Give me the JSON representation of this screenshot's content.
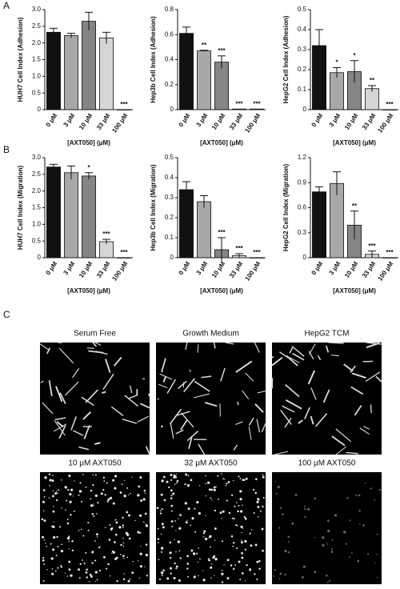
{
  "panel_labels": [
    "A",
    "B",
    "C"
  ],
  "image_captions": [
    "Serum Free",
    "Growth Medium",
    "HepG2 TCM",
    "10 μM AXT050",
    "32 μM AXT050",
    "100 μM AXT050"
  ],
  "chart_data": [
    {
      "type": "bar",
      "y_label": "HUH7 Cell Index (Adhesion)",
      "x_label": "[AXT050] (μM)",
      "categories": [
        "0 μM",
        "3 μM",
        "10 μM",
        "33 μM",
        "100 μM"
      ],
      "values": [
        2.32,
        2.22,
        2.65,
        2.15,
        0
      ],
      "errors": [
        0.12,
        0.07,
        0.27,
        0.17,
        0
      ],
      "annotations": [
        null,
        null,
        null,
        null,
        "***"
      ],
      "colors": [
        "#111111",
        "#a8a8a8",
        "#858585",
        "#d6d6d6",
        "#ffffff"
      ],
      "ylim": [
        0,
        3
      ],
      "yticks": [
        0,
        0.5,
        {
          "value": 1,
          "label": "1.0"
        },
        1.5,
        {
          "value": 2,
          "label": "2.0"
        },
        2.5,
        {
          "value": 3,
          "label": "3.0"
        }
      ]
    },
    {
      "type": "bar",
      "y_label": "Hep3b Cell Index (Adhesion)",
      "x_label": "[AXT050] (μM)",
      "categories": [
        "0 μM",
        "3 μM",
        "10 μM",
        "33 μM",
        "100 μM"
      ],
      "values": [
        0.61,
        0.47,
        0.38,
        0.005,
        0.005
      ],
      "errors": [
        0.05,
        0.005,
        0.05,
        0,
        0
      ],
      "annotations": [
        null,
        "**",
        "***",
        "***",
        "***"
      ],
      "colors": [
        "#111111",
        "#a8a8a8",
        "#858585",
        "#d6d6d6",
        "#ffffff"
      ],
      "ylim": [
        0,
        0.8
      ],
      "yticks": [
        0,
        0.2,
        0.4,
        0.6,
        0.8
      ]
    },
    {
      "type": "bar",
      "y_label": "HepG2 Cell Index (Adhesion)",
      "x_label": "[AXT050] (μM)",
      "categories": [
        "0 μM",
        "3 μM",
        "10 μM",
        "33 μM",
        "100 μM"
      ],
      "values": [
        0.32,
        0.185,
        0.19,
        0.105,
        0
      ],
      "errors": [
        0.08,
        0.025,
        0.055,
        0.015,
        0
      ],
      "annotations": [
        null,
        "*",
        "*",
        "**",
        "***"
      ],
      "colors": [
        "#111111",
        "#a8a8a8",
        "#858585",
        "#d6d6d6",
        "#ffffff"
      ],
      "ylim": [
        0,
        0.5
      ],
      "yticks": [
        0,
        0.1,
        0.2,
        0.3,
        0.4,
        0.5
      ]
    },
    {
      "type": "bar",
      "y_label": "HUH7 Cell Index (Migration)",
      "x_label": "[AXT050] (μM)",
      "categories": [
        "0 μM",
        "3 μM",
        "10 μM",
        "33 μM",
        "100 μM"
      ],
      "values": [
        2.72,
        2.55,
        2.45,
        0.48,
        0
      ],
      "errors": [
        0.08,
        0.2,
        0.1,
        0.07,
        0
      ],
      "annotations": [
        null,
        null,
        "*",
        "***",
        "***"
      ],
      "colors": [
        "#111111",
        "#a8a8a8",
        "#858585",
        "#d6d6d6",
        "#ffffff"
      ],
      "ylim": [
        0,
        3
      ],
      "yticks": [
        0,
        0.5,
        {
          "value": 1,
          "label": "1.0"
        },
        1.5,
        {
          "value": 2,
          "label": "2.0"
        },
        2.5,
        {
          "value": 3,
          "label": "3.0"
        }
      ]
    },
    {
      "type": "bar",
      "y_label": "Hep3b Cell Index (Migration)",
      "x_label": "[AXT050] (μM)",
      "categories": [
        "0 μM",
        "3 μM",
        "10 μM",
        "33 μM",
        "100 μM"
      ],
      "values": [
        0.34,
        0.28,
        0.04,
        0.01,
        0
      ],
      "errors": [
        0.04,
        0.03,
        0.06,
        0.01,
        0
      ],
      "annotations": [
        null,
        null,
        "***",
        "***",
        "***"
      ],
      "colors": [
        "#111111",
        "#a8a8a8",
        "#858585",
        "#d6d6d6",
        "#ffffff"
      ],
      "ylim": [
        0,
        0.5
      ],
      "yticks": [
        0,
        0.1,
        0.2,
        0.3,
        0.4,
        0.5
      ]
    },
    {
      "type": "bar",
      "y_label": "HepG2 Cell Index (Migration)",
      "x_label": "[AXT050] (μM)",
      "categories": [
        "0 μM",
        "3 μM",
        "10 μM",
        "33 μM",
        "100 μM"
      ],
      "values": [
        0.79,
        0.89,
        0.39,
        0.04,
        0
      ],
      "errors": [
        0.06,
        0.14,
        0.17,
        0.04,
        0
      ],
      "annotations": [
        null,
        null,
        "**",
        "***",
        "***"
      ],
      "colors": [
        "#111111",
        "#a8a8a8",
        "#858585",
        "#d6d6d6",
        "#ffffff"
      ],
      "ylim": [
        0,
        1.2
      ],
      "yticks": [
        0,
        0.3,
        0.6,
        0.9,
        1.2
      ]
    }
  ]
}
